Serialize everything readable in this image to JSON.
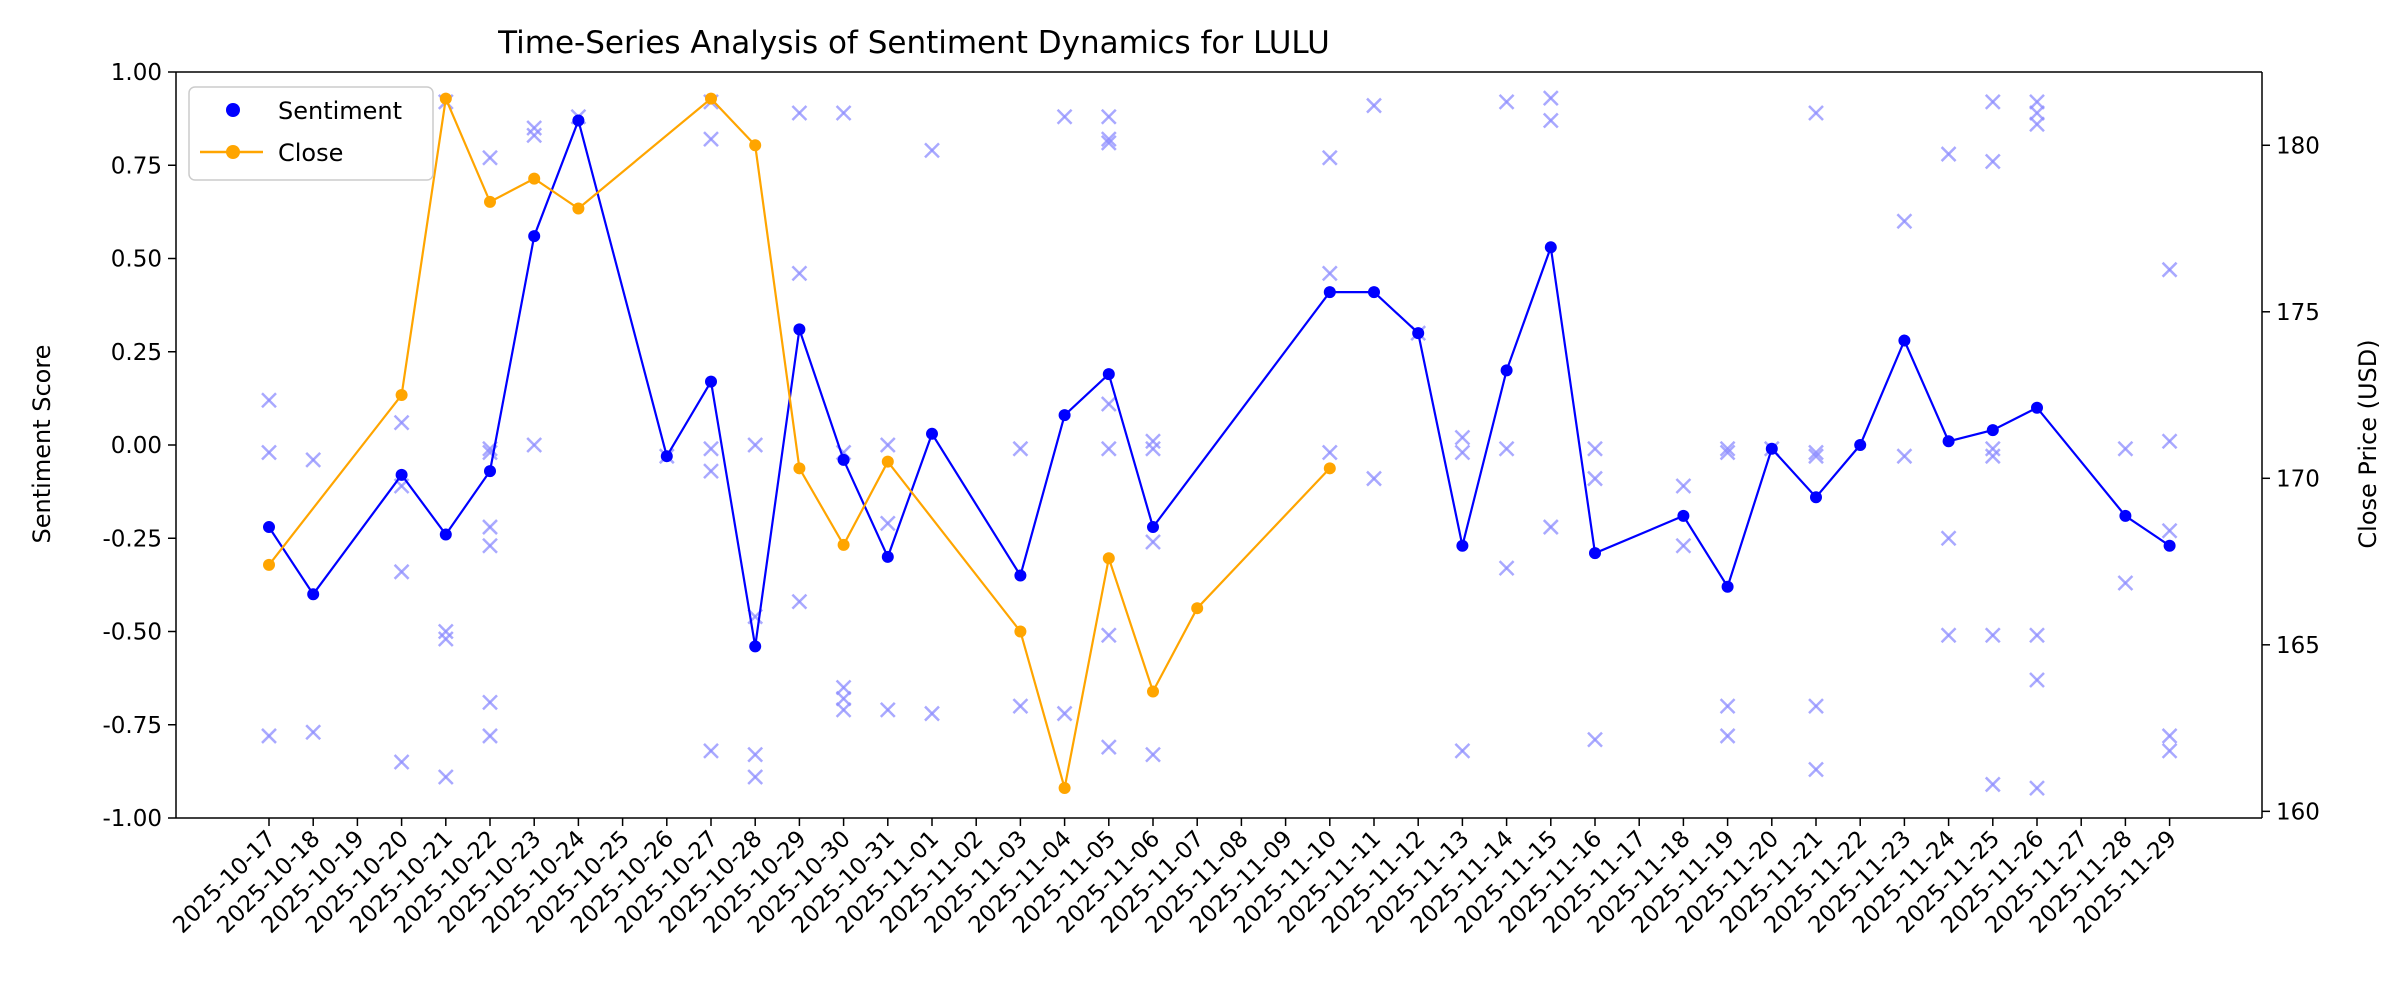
{
  "chart_data": {
    "type": "line",
    "title": "Time-Series Analysis of Sentiment Dynamics for LULU",
    "ylabel": "Sentiment Score",
    "y2label": "Close Price (USD)",
    "xlabel": "",
    "ylim": [
      -1.0,
      1.0
    ],
    "y2lim": [
      159.8,
      182.2
    ],
    "yticks": [
      -1.0,
      -0.75,
      -0.5,
      -0.25,
      0.0,
      0.25,
      0.5,
      0.75,
      1.0
    ],
    "y2ticks": [
      160,
      165,
      170,
      175,
      180
    ],
    "grid": false,
    "legend_position": "top-left",
    "dates": [
      "2025-10-17",
      "2025-10-18",
      "2025-10-19",
      "2025-10-20",
      "2025-10-21",
      "2025-10-22",
      "2025-10-23",
      "2025-10-24",
      "2025-10-25",
      "2025-10-26",
      "2025-10-27",
      "2025-10-28",
      "2025-10-29",
      "2025-10-30",
      "2025-10-31",
      "2025-11-01",
      "2025-11-02",
      "2025-11-03",
      "2025-11-04",
      "2025-11-05",
      "2025-11-06",
      "2025-11-07",
      "2025-11-08",
      "2025-11-09",
      "2025-11-10",
      "2025-11-11",
      "2025-11-12",
      "2025-11-13",
      "2025-11-14",
      "2025-11-15",
      "2025-11-16",
      "2025-11-17",
      "2025-11-18",
      "2025-11-19",
      "2025-11-20",
      "2025-11-21",
      "2025-11-22",
      "2025-11-23",
      "2025-11-24",
      "2025-11-25",
      "2025-11-26",
      "2025-11-27",
      "2025-11-28",
      "2025-11-29"
    ],
    "tick_labels": [
      "2025-10-17",
      "2025-10-18",
      "2025-10-19",
      "2025-10-20",
      "2025-10-21",
      "2025-10-22",
      "2025-10-23",
      "2025-10-24",
      "2025-10-25",
      "2025-10-26",
      "2025-10-27",
      "2025-10-28",
      "2025-10-29",
      "2025-10-30",
      "2025-10-31",
      "2025-11-01",
      "2025-11-02",
      "2025-11-03",
      "2025-11-04",
      "2025-11-05",
      "2025-11-06",
      "2025-11-07",
      "2025-11-08",
      "2025-11-09",
      "2025-11-10",
      "2025-11-11",
      "2025-11-12",
      "2025-11-13",
      "2025-11-14",
      "2025-11-15",
      "2025-11-16",
      "2025-11-17",
      "2025-11-18",
      "2025-11-19",
      "2025-11-20",
      "2025-11-21",
      "2025-11-22",
      "2025-11-23",
      "2025-11-24",
      "2025-11-25",
      "2025-11-26",
      "2025-11-27",
      "2025-11-28",
      "2025-11-29"
    ],
    "series": [
      {
        "name": "Sentiment",
        "axis": "left",
        "color": "#0000ff",
        "style": "line-with-dots",
        "points": [
          {
            "x": "2025-10-17",
            "y": -0.22
          },
          {
            "x": "2025-10-18",
            "y": -0.4
          },
          {
            "x": "2025-10-20",
            "y": -0.08
          },
          {
            "x": "2025-10-21",
            "y": -0.24
          },
          {
            "x": "2025-10-22",
            "y": -0.07
          },
          {
            "x": "2025-10-23",
            "y": 0.56
          },
          {
            "x": "2025-10-24",
            "y": 0.87
          },
          {
            "x": "2025-10-26",
            "y": -0.03
          },
          {
            "x": "2025-10-27",
            "y": 0.17
          },
          {
            "x": "2025-10-28",
            "y": -0.54
          },
          {
            "x": "2025-10-29",
            "y": 0.31
          },
          {
            "x": "2025-10-30",
            "y": -0.04
          },
          {
            "x": "2025-10-31",
            "y": -0.3
          },
          {
            "x": "2025-11-01",
            "y": 0.03
          },
          {
            "x": "2025-11-03",
            "y": -0.35
          },
          {
            "x": "2025-11-04",
            "y": 0.08
          },
          {
            "x": "2025-11-05",
            "y": 0.19
          },
          {
            "x": "2025-11-06",
            "y": -0.22
          },
          {
            "x": "2025-11-10",
            "y": 0.41
          },
          {
            "x": "2025-11-11",
            "y": 0.41
          },
          {
            "x": "2025-11-12",
            "y": 0.3
          },
          {
            "x": "2025-11-13",
            "y": -0.27
          },
          {
            "x": "2025-11-14",
            "y": 0.2
          },
          {
            "x": "2025-11-15",
            "y": 0.53
          },
          {
            "x": "2025-11-16",
            "y": -0.29
          },
          {
            "x": "2025-11-18",
            "y": -0.19
          },
          {
            "x": "2025-11-19",
            "y": -0.38
          },
          {
            "x": "2025-11-20",
            "y": -0.01
          },
          {
            "x": "2025-11-21",
            "y": -0.14
          },
          {
            "x": "2025-11-22",
            "y": 0.0
          },
          {
            "x": "2025-11-23",
            "y": 0.28
          },
          {
            "x": "2025-11-24",
            "y": 0.01
          },
          {
            "x": "2025-11-25",
            "y": 0.04
          },
          {
            "x": "2025-11-26",
            "y": 0.1
          },
          {
            "x": "2025-11-28",
            "y": -0.19
          },
          {
            "x": "2025-11-29",
            "y": -0.27
          }
        ]
      },
      {
        "name": "Close",
        "axis": "right",
        "color": "#ffa500",
        "style": "line-with-dots",
        "points": [
          {
            "x": "2025-10-17",
            "y": 167.4
          },
          {
            "x": "2025-10-20",
            "y": 172.5
          },
          {
            "x": "2025-10-21",
            "y": 181.4
          },
          {
            "x": "2025-10-22",
            "y": 178.3
          },
          {
            "x": "2025-10-23",
            "y": 179.0
          },
          {
            "x": "2025-10-24",
            "y": 178.1
          },
          {
            "x": "2025-10-27",
            "y": 181.4
          },
          {
            "x": "2025-10-28",
            "y": 180.0
          },
          {
            "x": "2025-10-29",
            "y": 170.3
          },
          {
            "x": "2025-10-30",
            "y": 168.0
          },
          {
            "x": "2025-10-31",
            "y": 170.5
          },
          {
            "x": "2025-11-03",
            "y": 165.4
          },
          {
            "x": "2025-11-04",
            "y": 160.7
          },
          {
            "x": "2025-11-05",
            "y": 167.6
          },
          {
            "x": "2025-11-06",
            "y": 163.6
          },
          {
            "x": "2025-11-07",
            "y": 166.1
          },
          {
            "x": "2025-11-10",
            "y": 170.3
          }
        ]
      }
    ],
    "scatter": {
      "axis": "left",
      "color": "#8c8cff",
      "marker": "x",
      "points": [
        {
          "x": "2025-10-17",
          "y": 0.12
        },
        {
          "x": "2025-10-17",
          "y": -0.02
        },
        {
          "x": "2025-10-17",
          "y": -0.78
        },
        {
          "x": "2025-10-18",
          "y": -0.04
        },
        {
          "x": "2025-10-18",
          "y": -0.77
        },
        {
          "x": "2025-10-20",
          "y": 0.06
        },
        {
          "x": "2025-10-20",
          "y": -0.11
        },
        {
          "x": "2025-10-20",
          "y": -0.34
        },
        {
          "x": "2025-10-20",
          "y": -0.85
        },
        {
          "x": "2025-10-21",
          "y": 0.92
        },
        {
          "x": "2025-10-21",
          "y": -0.5
        },
        {
          "x": "2025-10-21",
          "y": -0.52
        },
        {
          "x": "2025-10-21",
          "y": -0.89
        },
        {
          "x": "2025-10-22",
          "y": 0.77
        },
        {
          "x": "2025-10-22",
          "y": -0.01
        },
        {
          "x": "2025-10-22",
          "y": -0.02
        },
        {
          "x": "2025-10-22",
          "y": -0.22
        },
        {
          "x": "2025-10-22",
          "y": -0.27
        },
        {
          "x": "2025-10-22",
          "y": -0.69
        },
        {
          "x": "2025-10-22",
          "y": -0.78
        },
        {
          "x": "2025-10-23",
          "y": 0.85
        },
        {
          "x": "2025-10-23",
          "y": 0.83
        },
        {
          "x": "2025-10-23",
          "y": 0.0
        },
        {
          "x": "2025-10-24",
          "y": 0.88
        },
        {
          "x": "2025-10-26",
          "y": -0.03
        },
        {
          "x": "2025-10-27",
          "y": 0.92
        },
        {
          "x": "2025-10-27",
          "y": 0.82
        },
        {
          "x": "2025-10-27",
          "y": -0.01
        },
        {
          "x": "2025-10-27",
          "y": -0.07
        },
        {
          "x": "2025-10-27",
          "y": -0.82
        },
        {
          "x": "2025-10-28",
          "y": 0.0
        },
        {
          "x": "2025-10-28",
          "y": -0.46
        },
        {
          "x": "2025-10-28",
          "y": -0.83
        },
        {
          "x": "2025-10-28",
          "y": -0.89
        },
        {
          "x": "2025-10-29",
          "y": 0.89
        },
        {
          "x": "2025-10-29",
          "y": 0.46
        },
        {
          "x": "2025-10-29",
          "y": -0.42
        },
        {
          "x": "2025-10-30",
          "y": 0.89
        },
        {
          "x": "2025-10-30",
          "y": -0.02
        },
        {
          "x": "2025-10-30",
          "y": -0.65
        },
        {
          "x": "2025-10-30",
          "y": -0.68
        },
        {
          "x": "2025-10-30",
          "y": -0.71
        },
        {
          "x": "2025-10-31",
          "y": 0.0
        },
        {
          "x": "2025-10-31",
          "y": -0.21
        },
        {
          "x": "2025-10-31",
          "y": -0.71
        },
        {
          "x": "2025-11-01",
          "y": 0.79
        },
        {
          "x": "2025-11-01",
          "y": -0.72
        },
        {
          "x": "2025-11-03",
          "y": -0.01
        },
        {
          "x": "2025-11-03",
          "y": -0.7
        },
        {
          "x": "2025-11-04",
          "y": 0.88
        },
        {
          "x": "2025-11-04",
          "y": -0.72
        },
        {
          "x": "2025-11-05",
          "y": 0.88
        },
        {
          "x": "2025-11-05",
          "y": 0.82
        },
        {
          "x": "2025-11-05",
          "y": 0.81
        },
        {
          "x": "2025-11-05",
          "y": 0.11
        },
        {
          "x": "2025-11-05",
          "y": -0.01
        },
        {
          "x": "2025-11-05",
          "y": -0.51
        },
        {
          "x": "2025-11-05",
          "y": -0.81
        },
        {
          "x": "2025-11-06",
          "y": 0.01
        },
        {
          "x": "2025-11-06",
          "y": -0.01
        },
        {
          "x": "2025-11-06",
          "y": -0.26
        },
        {
          "x": "2025-11-06",
          "y": -0.83
        },
        {
          "x": "2025-11-10",
          "y": 0.77
        },
        {
          "x": "2025-11-10",
          "y": 0.46
        },
        {
          "x": "2025-11-10",
          "y": -0.02
        },
        {
          "x": "2025-11-11",
          "y": 0.91
        },
        {
          "x": "2025-11-11",
          "y": -0.09
        },
        {
          "x": "2025-11-12",
          "y": 0.3
        },
        {
          "x": "2025-11-13",
          "y": 0.02
        },
        {
          "x": "2025-11-13",
          "y": -0.02
        },
        {
          "x": "2025-11-13",
          "y": -0.82
        },
        {
          "x": "2025-11-14",
          "y": 0.92
        },
        {
          "x": "2025-11-14",
          "y": -0.01
        },
        {
          "x": "2025-11-14",
          "y": -0.33
        },
        {
          "x": "2025-11-15",
          "y": 0.93
        },
        {
          "x": "2025-11-15",
          "y": 0.87
        },
        {
          "x": "2025-11-15",
          "y": -0.22
        },
        {
          "x": "2025-11-16",
          "y": -0.01
        },
        {
          "x": "2025-11-16",
          "y": -0.09
        },
        {
          "x": "2025-11-16",
          "y": -0.79
        },
        {
          "x": "2025-11-18",
          "y": -0.11
        },
        {
          "x": "2025-11-18",
          "y": -0.27
        },
        {
          "x": "2025-11-19",
          "y": -0.01
        },
        {
          "x": "2025-11-19",
          "y": -0.02
        },
        {
          "x": "2025-11-19",
          "y": -0.7
        },
        {
          "x": "2025-11-19",
          "y": -0.78
        },
        {
          "x": "2025-11-20",
          "y": -0.01
        },
        {
          "x": "2025-11-21",
          "y": 0.89
        },
        {
          "x": "2025-11-21",
          "y": -0.02
        },
        {
          "x": "2025-11-21",
          "y": -0.03
        },
        {
          "x": "2025-11-21",
          "y": -0.7
        },
        {
          "x": "2025-11-21",
          "y": -0.87
        },
        {
          "x": "2025-11-23",
          "y": 0.6
        },
        {
          "x": "2025-11-23",
          "y": -0.03
        },
        {
          "x": "2025-11-24",
          "y": 0.78
        },
        {
          "x": "2025-11-24",
          "y": -0.25
        },
        {
          "x": "2025-11-24",
          "y": -0.51
        },
        {
          "x": "2025-11-25",
          "y": 0.92
        },
        {
          "x": "2025-11-25",
          "y": 0.76
        },
        {
          "x": "2025-11-25",
          "y": -0.01
        },
        {
          "x": "2025-11-25",
          "y": -0.03
        },
        {
          "x": "2025-11-25",
          "y": -0.51
        },
        {
          "x": "2025-11-25",
          "y": -0.91
        },
        {
          "x": "2025-11-26",
          "y": 0.92
        },
        {
          "x": "2025-11-26",
          "y": 0.89
        },
        {
          "x": "2025-11-26",
          "y": 0.86
        },
        {
          "x": "2025-11-26",
          "y": -0.51
        },
        {
          "x": "2025-11-26",
          "y": -0.63
        },
        {
          "x": "2025-11-26",
          "y": -0.92
        },
        {
          "x": "2025-11-28",
          "y": -0.01
        },
        {
          "x": "2025-11-28",
          "y": -0.37
        },
        {
          "x": "2025-11-29",
          "y": 0.47
        },
        {
          "x": "2025-11-29",
          "y": 0.01
        },
        {
          "x": "2025-11-29",
          "y": -0.23
        },
        {
          "x": "2025-11-29",
          "y": -0.78
        },
        {
          "x": "2025-11-29",
          "y": -0.82
        }
      ]
    }
  }
}
